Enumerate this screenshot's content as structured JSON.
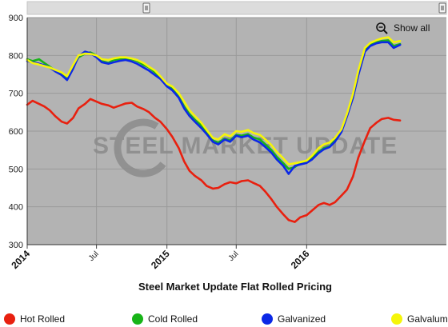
{
  "chart_data": {
    "type": "line",
    "title": "Steel Market Update Flat Rolled Pricing",
    "watermark": "STEEL MARKET UPDATE",
    "x_ticks_major": [
      {
        "label": "2014",
        "date": "2014-01-01"
      },
      {
        "label": "2015",
        "date": "2015-01-01"
      },
      {
        "label": "2016",
        "date": "2016-01-01"
      }
    ],
    "x_ticks_minor": [
      {
        "label": "Jul",
        "date": "2014-07-01"
      },
      {
        "label": "Jul",
        "date": "2015-07-01"
      }
    ],
    "xlim": [
      "2014-01-01",
      "2016-12-31"
    ],
    "ylim": [
      300,
      900
    ],
    "y_ticks": [
      300,
      400,
      500,
      600,
      700,
      800,
      900
    ],
    "grid": true,
    "legend_position": "bottom",
    "zoom_control": "Show all",
    "series": [
      {
        "name": "Hot Rolled",
        "color": "#e8200f",
        "points": [
          [
            "2014-01-01",
            670
          ],
          [
            "2014-01-15",
            680
          ],
          [
            "2014-02-01",
            672
          ],
          [
            "2014-02-15",
            665
          ],
          [
            "2014-03-01",
            655
          ],
          [
            "2014-03-15",
            640
          ],
          [
            "2014-04-01",
            625
          ],
          [
            "2014-04-15",
            620
          ],
          [
            "2014-05-01",
            635
          ],
          [
            "2014-05-15",
            660
          ],
          [
            "2014-06-01",
            672
          ],
          [
            "2014-06-15",
            685
          ],
          [
            "2014-07-01",
            678
          ],
          [
            "2014-07-15",
            672
          ],
          [
            "2014-08-01",
            668
          ],
          [
            "2014-08-15",
            662
          ],
          [
            "2014-09-01",
            668
          ],
          [
            "2014-09-15",
            673
          ],
          [
            "2014-10-01",
            675
          ],
          [
            "2014-10-15",
            665
          ],
          [
            "2014-11-01",
            658
          ],
          [
            "2014-11-15",
            650
          ],
          [
            "2014-12-01",
            635
          ],
          [
            "2014-12-15",
            625
          ],
          [
            "2015-01-01",
            605
          ],
          [
            "2015-01-15",
            585
          ],
          [
            "2015-02-01",
            555
          ],
          [
            "2015-02-15",
            520
          ],
          [
            "2015-03-01",
            495
          ],
          [
            "2015-03-15",
            482
          ],
          [
            "2015-04-01",
            470
          ],
          [
            "2015-04-15",
            455
          ],
          [
            "2015-05-01",
            448
          ],
          [
            "2015-05-15",
            450
          ],
          [
            "2015-06-01",
            460
          ],
          [
            "2015-06-15",
            465
          ],
          [
            "2015-07-01",
            462
          ],
          [
            "2015-07-15",
            468
          ],
          [
            "2015-08-01",
            470
          ],
          [
            "2015-08-15",
            463
          ],
          [
            "2015-09-01",
            455
          ],
          [
            "2015-09-15",
            440
          ],
          [
            "2015-10-01",
            420
          ],
          [
            "2015-10-15",
            400
          ],
          [
            "2015-11-01",
            380
          ],
          [
            "2015-11-15",
            365
          ],
          [
            "2015-12-01",
            360
          ],
          [
            "2015-12-15",
            372
          ],
          [
            "2016-01-01",
            378
          ],
          [
            "2016-01-15",
            390
          ],
          [
            "2016-02-01",
            405
          ],
          [
            "2016-02-15",
            410
          ],
          [
            "2016-03-01",
            405
          ],
          [
            "2016-03-15",
            412
          ],
          [
            "2016-04-01",
            430
          ],
          [
            "2016-04-15",
            445
          ],
          [
            "2016-05-01",
            480
          ],
          [
            "2016-05-15",
            530
          ],
          [
            "2016-06-01",
            575
          ],
          [
            "2016-06-15",
            608
          ],
          [
            "2016-07-01",
            622
          ],
          [
            "2016-07-15",
            632
          ],
          [
            "2016-08-01",
            635
          ],
          [
            "2016-08-15",
            630
          ],
          [
            "2016-09-01",
            628
          ]
        ]
      },
      {
        "name": "Cold Rolled",
        "color": "#18b418",
        "points": [
          [
            "2014-01-01",
            790
          ],
          [
            "2014-01-15",
            785
          ],
          [
            "2014-02-01",
            790
          ],
          [
            "2014-02-15",
            780
          ],
          [
            "2014-03-01",
            770
          ],
          [
            "2014-03-15",
            760
          ],
          [
            "2014-04-01",
            750
          ],
          [
            "2014-04-15",
            740
          ],
          [
            "2014-05-01",
            770
          ],
          [
            "2014-05-15",
            795
          ],
          [
            "2014-06-01",
            805
          ],
          [
            "2014-06-15",
            808
          ],
          [
            "2014-07-01",
            800
          ],
          [
            "2014-07-15",
            785
          ],
          [
            "2014-08-01",
            780
          ],
          [
            "2014-08-15",
            788
          ],
          [
            "2014-09-01",
            790
          ],
          [
            "2014-09-15",
            792
          ],
          [
            "2014-10-01",
            790
          ],
          [
            "2014-10-15",
            785
          ],
          [
            "2014-11-01",
            775
          ],
          [
            "2014-11-15",
            768
          ],
          [
            "2014-12-01",
            755
          ],
          [
            "2014-12-15",
            740
          ],
          [
            "2015-01-01",
            718
          ],
          [
            "2015-01-15",
            712
          ],
          [
            "2015-02-01",
            690
          ],
          [
            "2015-02-15",
            665
          ],
          [
            "2015-03-01",
            645
          ],
          [
            "2015-03-15",
            630
          ],
          [
            "2015-04-01",
            615
          ],
          [
            "2015-04-15",
            595
          ],
          [
            "2015-05-01",
            575
          ],
          [
            "2015-05-15",
            570
          ],
          [
            "2015-06-01",
            580
          ],
          [
            "2015-06-15",
            575
          ],
          [
            "2015-07-01",
            590
          ],
          [
            "2015-07-15",
            588
          ],
          [
            "2015-08-01",
            592
          ],
          [
            "2015-08-15",
            583
          ],
          [
            "2015-09-01",
            578
          ],
          [
            "2015-09-15",
            565
          ],
          [
            "2015-10-01",
            550
          ],
          [
            "2015-10-15",
            532
          ],
          [
            "2015-11-01",
            515
          ],
          [
            "2015-11-15",
            500
          ],
          [
            "2015-12-01",
            505
          ],
          [
            "2015-12-15",
            515
          ],
          [
            "2016-01-01",
            518
          ],
          [
            "2016-01-15",
            528
          ],
          [
            "2016-02-01",
            545
          ],
          [
            "2016-02-15",
            555
          ],
          [
            "2016-03-01",
            560
          ],
          [
            "2016-03-15",
            575
          ],
          [
            "2016-04-01",
            600
          ],
          [
            "2016-04-15",
            640
          ],
          [
            "2016-05-01",
            690
          ],
          [
            "2016-05-15",
            750
          ],
          [
            "2016-06-01",
            815
          ],
          [
            "2016-06-15",
            828
          ],
          [
            "2016-07-01",
            835
          ],
          [
            "2016-07-15",
            838
          ],
          [
            "2016-08-01",
            840
          ],
          [
            "2016-08-15",
            825
          ],
          [
            "2016-09-01",
            830
          ]
        ]
      },
      {
        "name": "Galvanized",
        "color": "#0b28e6",
        "points": [
          [
            "2014-01-01",
            785
          ],
          [
            "2014-01-15",
            782
          ],
          [
            "2014-02-01",
            778
          ],
          [
            "2014-02-15",
            774
          ],
          [
            "2014-03-01",
            768
          ],
          [
            "2014-03-15",
            758
          ],
          [
            "2014-04-01",
            748
          ],
          [
            "2014-04-15",
            735
          ],
          [
            "2014-05-01",
            765
          ],
          [
            "2014-05-15",
            798
          ],
          [
            "2014-06-01",
            810
          ],
          [
            "2014-06-15",
            806
          ],
          [
            "2014-07-01",
            795
          ],
          [
            "2014-07-15",
            782
          ],
          [
            "2014-08-01",
            778
          ],
          [
            "2014-08-15",
            782
          ],
          [
            "2014-09-01",
            786
          ],
          [
            "2014-09-15",
            788
          ],
          [
            "2014-10-01",
            784
          ],
          [
            "2014-10-15",
            778
          ],
          [
            "2014-11-01",
            768
          ],
          [
            "2014-11-15",
            760
          ],
          [
            "2014-12-01",
            748
          ],
          [
            "2014-12-15",
            738
          ],
          [
            "2015-01-01",
            718
          ],
          [
            "2015-01-15",
            708
          ],
          [
            "2015-02-01",
            688
          ],
          [
            "2015-02-15",
            660
          ],
          [
            "2015-03-01",
            640
          ],
          [
            "2015-03-15",
            625
          ],
          [
            "2015-04-01",
            608
          ],
          [
            "2015-04-15",
            592
          ],
          [
            "2015-05-01",
            572
          ],
          [
            "2015-05-15",
            565
          ],
          [
            "2015-06-01",
            578
          ],
          [
            "2015-06-15",
            572
          ],
          [
            "2015-07-01",
            588
          ],
          [
            "2015-07-15",
            584
          ],
          [
            "2015-08-01",
            588
          ],
          [
            "2015-08-15",
            578
          ],
          [
            "2015-09-01",
            570
          ],
          [
            "2015-09-15",
            558
          ],
          [
            "2015-10-01",
            543
          ],
          [
            "2015-10-15",
            525
          ],
          [
            "2015-11-01",
            508
          ],
          [
            "2015-11-15",
            487
          ],
          [
            "2015-12-01",
            508
          ],
          [
            "2015-12-15",
            512
          ],
          [
            "2016-01-01",
            516
          ],
          [
            "2016-01-15",
            525
          ],
          [
            "2016-02-01",
            542
          ],
          [
            "2016-02-15",
            552
          ],
          [
            "2016-03-01",
            558
          ],
          [
            "2016-03-15",
            572
          ],
          [
            "2016-04-01",
            598
          ],
          [
            "2016-04-15",
            638
          ],
          [
            "2016-05-01",
            688
          ],
          [
            "2016-05-15",
            748
          ],
          [
            "2016-06-01",
            810
          ],
          [
            "2016-06-15",
            825
          ],
          [
            "2016-07-01",
            832
          ],
          [
            "2016-07-15",
            835
          ],
          [
            "2016-08-01",
            835
          ],
          [
            "2016-08-15",
            820
          ],
          [
            "2016-09-01",
            828
          ]
        ]
      },
      {
        "name": "Galvalume",
        "color": "#f5f50a",
        "points": [
          [
            "2014-01-01",
            788
          ],
          [
            "2014-01-15",
            780
          ],
          [
            "2014-02-01",
            776
          ],
          [
            "2014-02-15",
            772
          ],
          [
            "2014-03-01",
            768
          ],
          [
            "2014-03-15",
            762
          ],
          [
            "2014-04-01",
            755
          ],
          [
            "2014-04-15",
            745
          ],
          [
            "2014-05-01",
            775
          ],
          [
            "2014-05-15",
            800
          ],
          [
            "2014-06-01",
            805
          ],
          [
            "2014-06-15",
            804
          ],
          [
            "2014-07-01",
            800
          ],
          [
            "2014-07-15",
            790
          ],
          [
            "2014-08-01",
            788
          ],
          [
            "2014-08-15",
            792
          ],
          [
            "2014-09-01",
            795
          ],
          [
            "2014-09-15",
            795
          ],
          [
            "2014-10-01",
            792
          ],
          [
            "2014-10-15",
            788
          ],
          [
            "2014-11-01",
            780
          ],
          [
            "2014-11-15",
            770
          ],
          [
            "2014-12-01",
            760
          ],
          [
            "2014-12-15",
            745
          ],
          [
            "2015-01-01",
            725
          ],
          [
            "2015-01-15",
            718
          ],
          [
            "2015-02-01",
            700
          ],
          [
            "2015-02-15",
            678
          ],
          [
            "2015-03-01",
            655
          ],
          [
            "2015-03-15",
            640
          ],
          [
            "2015-04-01",
            622
          ],
          [
            "2015-04-15",
            603
          ],
          [
            "2015-05-01",
            582
          ],
          [
            "2015-05-15",
            578
          ],
          [
            "2015-06-01",
            592
          ],
          [
            "2015-06-15",
            586
          ],
          [
            "2015-07-01",
            600
          ],
          [
            "2015-07-15",
            598
          ],
          [
            "2015-08-01",
            603
          ],
          [
            "2015-08-15",
            595
          ],
          [
            "2015-09-01",
            590
          ],
          [
            "2015-09-15",
            578
          ],
          [
            "2015-10-01",
            563
          ],
          [
            "2015-10-15",
            545
          ],
          [
            "2015-11-01",
            528
          ],
          [
            "2015-11-15",
            512
          ],
          [
            "2015-12-01",
            515
          ],
          [
            "2015-12-15",
            518
          ],
          [
            "2016-01-01",
            522
          ],
          [
            "2016-01-15",
            535
          ],
          [
            "2016-02-01",
            555
          ],
          [
            "2016-02-15",
            565
          ],
          [
            "2016-03-01",
            570
          ],
          [
            "2016-03-15",
            582
          ],
          [
            "2016-04-01",
            605
          ],
          [
            "2016-04-15",
            645
          ],
          [
            "2016-05-01",
            698
          ],
          [
            "2016-05-15",
            760
          ],
          [
            "2016-06-01",
            820
          ],
          [
            "2016-06-15",
            833
          ],
          [
            "2016-07-01",
            840
          ],
          [
            "2016-07-15",
            845
          ],
          [
            "2016-08-01",
            848
          ],
          [
            "2016-08-15",
            835
          ],
          [
            "2016-09-01",
            838
          ]
        ]
      }
    ]
  }
}
